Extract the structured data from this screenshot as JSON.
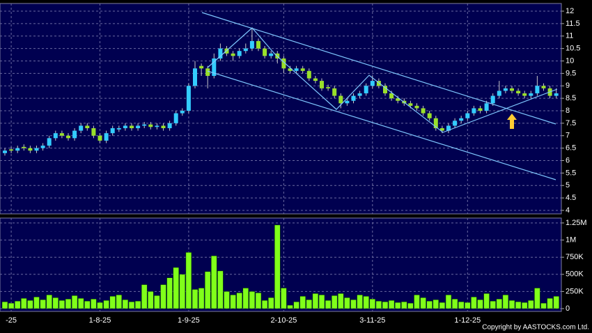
{
  "chart_data": [
    {
      "type": "candlestick",
      "open": [
        6.3,
        6.45,
        6.4,
        6.55,
        6.5,
        6.4,
        6.5,
        6.6,
        6.9,
        7.1,
        7.0,
        6.9,
        7.2,
        7.4,
        7.3,
        7.0,
        6.8,
        7.1,
        7.25,
        7.3,
        7.4,
        7.3,
        7.4,
        7.45,
        7.35,
        7.4,
        7.3,
        7.5,
        7.9,
        8.0,
        9.0,
        9.8,
        9.7,
        9.4,
        10.1,
        10.5,
        10.3,
        10.2,
        10.4,
        10.5,
        10.8,
        10.5,
        10.2,
        10.3,
        10.1,
        9.7,
        9.6,
        9.7,
        9.6,
        9.3,
        9.2,
        8.95,
        8.9,
        8.6,
        8.3,
        8.4,
        8.6,
        8.7,
        9.0,
        9.2,
        9.0,
        8.7,
        8.5,
        8.4,
        8.3,
        8.2,
        8.1,
        7.9,
        7.7,
        7.3,
        7.2,
        7.4,
        7.6,
        7.7,
        7.9,
        8.1,
        8.0,
        8.3,
        8.6,
        8.8,
        8.9,
        8.8,
        8.7,
        8.6,
        8.7,
        9.0,
        8.9,
        8.6
      ],
      "high": [
        6.5,
        6.55,
        6.6,
        6.65,
        6.6,
        6.6,
        6.7,
        7.0,
        7.2,
        7.2,
        7.1,
        7.3,
        7.5,
        7.5,
        7.4,
        7.1,
        7.2,
        7.4,
        7.4,
        7.5,
        7.5,
        7.5,
        7.55,
        7.55,
        7.5,
        7.5,
        7.6,
        8.0,
        8.1,
        9.1,
        10.0,
        9.9,
        9.8,
        10.3,
        10.7,
        10.6,
        10.4,
        10.5,
        10.7,
        11.3,
        10.9,
        10.6,
        10.4,
        10.4,
        10.2,
        9.8,
        9.8,
        9.8,
        9.7,
        9.4,
        9.3,
        9.05,
        9.0,
        8.7,
        8.5,
        8.7,
        8.8,
        9.1,
        9.4,
        9.3,
        9.1,
        8.8,
        8.6,
        8.5,
        8.4,
        8.3,
        8.2,
        8.0,
        7.8,
        7.4,
        7.5,
        7.7,
        7.8,
        8.0,
        8.2,
        8.2,
        8.4,
        8.7,
        9.2,
        9.0,
        9.0,
        8.9,
        8.8,
        8.8,
        9.4,
        9.1,
        9.0,
        8.9
      ],
      "low": [
        6.2,
        6.3,
        6.3,
        6.4,
        6.3,
        6.3,
        6.4,
        6.5,
        6.8,
        6.9,
        6.8,
        6.8,
        7.1,
        7.2,
        6.9,
        6.7,
        6.7,
        7.0,
        7.15,
        7.2,
        7.2,
        7.2,
        7.3,
        7.25,
        7.25,
        7.2,
        7.2,
        7.4,
        7.8,
        7.9,
        8.9,
        9.4,
        8.9,
        9.3,
        10.0,
        10.2,
        10.0,
        10.1,
        10.3,
        10.4,
        10.4,
        10.1,
        10.1,
        9.9,
        9.5,
        9.5,
        9.5,
        9.5,
        9.2,
        9.1,
        8.8,
        8.8,
        8.5,
        8.1,
        8.2,
        8.3,
        8.5,
        8.6,
        8.9,
        8.9,
        8.6,
        8.4,
        8.3,
        8.2,
        8.1,
        8.0,
        7.8,
        7.6,
        7.2,
        7.1,
        7.1,
        7.3,
        7.5,
        7.6,
        7.8,
        7.9,
        7.9,
        8.2,
        8.5,
        8.7,
        8.7,
        8.6,
        8.5,
        8.5,
        8.6,
        8.8,
        8.5,
        8.5
      ],
      "close": [
        6.4,
        6.4,
        6.5,
        6.5,
        6.4,
        6.5,
        6.6,
        6.9,
        7.1,
        7.0,
        6.9,
        7.2,
        7.4,
        7.3,
        7.0,
        6.8,
        7.1,
        7.3,
        7.3,
        7.4,
        7.3,
        7.4,
        7.45,
        7.35,
        7.4,
        7.3,
        7.5,
        7.9,
        8.0,
        9.0,
        9.7,
        9.7,
        9.4,
        10.1,
        10.5,
        10.3,
        10.2,
        10.4,
        10.5,
        10.8,
        10.5,
        10.2,
        10.3,
        10.1,
        9.7,
        9.6,
        9.7,
        9.6,
        9.3,
        9.2,
        8.9,
        8.9,
        8.6,
        8.3,
        8.4,
        8.6,
        8.7,
        9.0,
        9.2,
        9.0,
        8.7,
        8.5,
        8.4,
        8.3,
        8.2,
        8.1,
        7.9,
        7.7,
        7.3,
        7.2,
        7.4,
        7.6,
        7.7,
        7.9,
        8.1,
        8.0,
        8.3,
        8.6,
        8.8,
        8.9,
        8.8,
        8.7,
        8.6,
        8.7,
        9.0,
        8.9,
        8.6,
        8.7
      ],
      "up_color": "#33ccff",
      "down_color": "#99e02a",
      "ylim": [
        4,
        12
      ],
      "yticks": [
        4,
        4.5,
        5,
        5.5,
        6,
        6.5,
        7,
        7.5,
        8,
        8.5,
        9,
        9.5,
        10,
        10.5,
        11,
        11.5,
        12
      ],
      "grid": true
    },
    {
      "type": "bar",
      "categories": [
        null,
        "-25",
        null,
        null,
        null,
        null,
        null,
        null,
        null,
        null,
        null,
        null,
        null,
        null,
        null,
        "1-8-25",
        null,
        null,
        null,
        null,
        null,
        null,
        null,
        null,
        null,
        null,
        null,
        null,
        null,
        "1-9-25",
        null,
        null,
        null,
        null,
        null,
        null,
        null,
        null,
        null,
        null,
        null,
        null,
        null,
        null,
        "2-10-25",
        null,
        null,
        null,
        null,
        null,
        null,
        null,
        null,
        null,
        null,
        null,
        null,
        null,
        "3-11-25",
        null,
        null,
        null,
        null,
        null,
        null,
        null,
        null,
        null,
        null,
        null,
        null,
        null,
        null,
        "1-12-25",
        null,
        null,
        null,
        null,
        null,
        null,
        null,
        null,
        null,
        null,
        null,
        null,
        null,
        null
      ],
      "values": [
        100000,
        80000,
        110000,
        150000,
        120000,
        170000,
        130000,
        200000,
        160000,
        120000,
        140000,
        190000,
        150000,
        110000,
        140000,
        90000,
        120000,
        180000,
        200000,
        130000,
        100000,
        110000,
        350000,
        250000,
        190000,
        350000,
        450000,
        600000,
        500000,
        820000,
        280000,
        300000,
        540000,
        770000,
        550000,
        250000,
        200000,
        230000,
        300000,
        250000,
        230000,
        120000,
        160000,
        1220000,
        300000,
        50000,
        100000,
        180000,
        130000,
        220000,
        200000,
        120000,
        190000,
        220000,
        160000,
        130000,
        200000,
        180000,
        140000,
        110000,
        100000,
        120000,
        90000,
        100000,
        80000,
        200000,
        160000,
        110000,
        130000,
        90000,
        200000,
        140000,
        100000,
        90000,
        170000,
        130000,
        220000,
        110000,
        140000,
        200000,
        120000,
        100000,
        90000,
        120000,
        300000,
        80000,
        150000,
        180000
      ],
      "color": "#80ff1a",
      "ylim": [
        0,
        1250000
      ],
      "yticks": [
        0,
        {
          "value": 250000,
          "label": "250K"
        },
        {
          "value": 500000,
          "label": "500K"
        },
        {
          "value": 750000,
          "label": "750K"
        },
        {
          "value": 1000000,
          "label": "1M"
        },
        {
          "value": 1250000,
          "label": "1.25M"
        }
      ],
      "grid": true
    }
  ],
  "copyright": "Copyright by AASTOCKS.com Ltd."
}
